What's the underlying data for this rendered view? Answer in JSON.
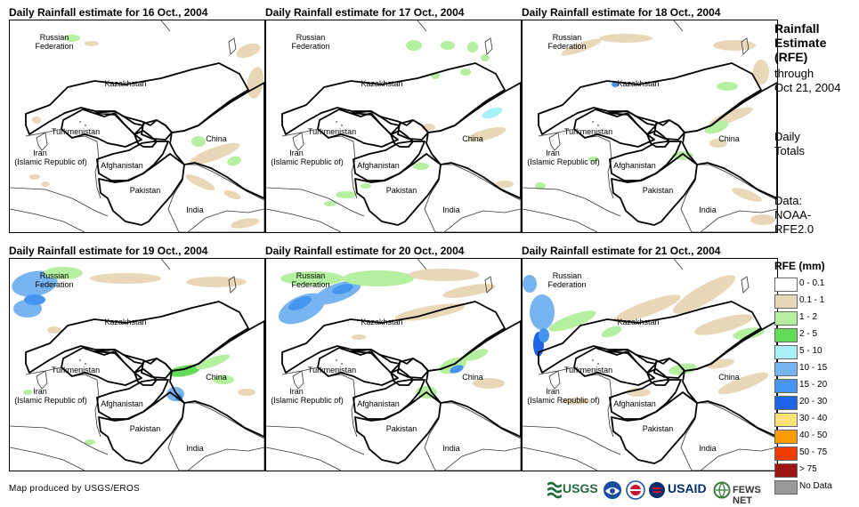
{
  "panels": [
    {
      "title": "Daily Rainfall estimate for 16 Oct., 2004",
      "day": 16
    },
    {
      "title": "Daily Rainfall estimate for 17 Oct., 2004",
      "day": 17
    },
    {
      "title": "Daily Rainfall estimate for 18 Oct., 2004",
      "day": 18
    },
    {
      "title": "Daily Rainfall estimate for 19 Oct., 2004",
      "day": 19
    },
    {
      "title": "Daily Rainfall estimate for 20 Oct., 2004",
      "day": 20
    },
    {
      "title": "Daily Rainfall estimate for 21 Oct., 2004",
      "day": 21
    }
  ],
  "country_labels": {
    "russia_1": "Russian",
    "russia_2": "Federation",
    "kazakhstan": "Kazakhstan",
    "turkmenistan": "Turkmenistan",
    "iran_1": "Iran",
    "iran_2": "(Islamic Republic of)",
    "afghanistan": "Afghanistan",
    "pakistan": "Pakistan",
    "india": "India",
    "china": "China"
  },
  "side_info": {
    "rfe_line1": "Rainfall",
    "rfe_line2": "Estimate",
    "rfe_line3": "(RFE)",
    "through": "through",
    "through_date": "Oct 21, 2004",
    "daily_1": "Daily",
    "daily_2": "Totals",
    "data_1": "Data:",
    "data_2": "NOAA-",
    "data_3": "RFE2.0"
  },
  "legend": {
    "title": "RFE (mm)",
    "items": [
      {
        "label": "0 - 0.1",
        "color": "#ffffff"
      },
      {
        "label": "0.1 - 1",
        "color": "#e8d8b8"
      },
      {
        "label": "1 - 2",
        "color": "#b4f0a0"
      },
      {
        "label": "2 - 5",
        "color": "#64dc5a"
      },
      {
        "label": "5 - 10",
        "color": "#aaf0f8"
      },
      {
        "label": "10 - 15",
        "color": "#78b4f0"
      },
      {
        "label": "15 - 20",
        "color": "#4696f0"
      },
      {
        "label": "20 - 30",
        "color": "#1e64e6"
      },
      {
        "label": "30 - 40",
        "color": "#fae178"
      },
      {
        "label": "40 - 50",
        "color": "#fa9b00"
      },
      {
        "label": "50 - 75",
        "color": "#f03c00"
      },
      {
        "label": "> 75",
        "color": "#a01414"
      },
      {
        "label": "No Data",
        "color": "#999999"
      }
    ]
  },
  "credit": "Map produced by USGS/EROS",
  "logos": {
    "usgs": "USGS",
    "usaid": "USAID",
    "fewsnet": "FEWS NET"
  }
}
